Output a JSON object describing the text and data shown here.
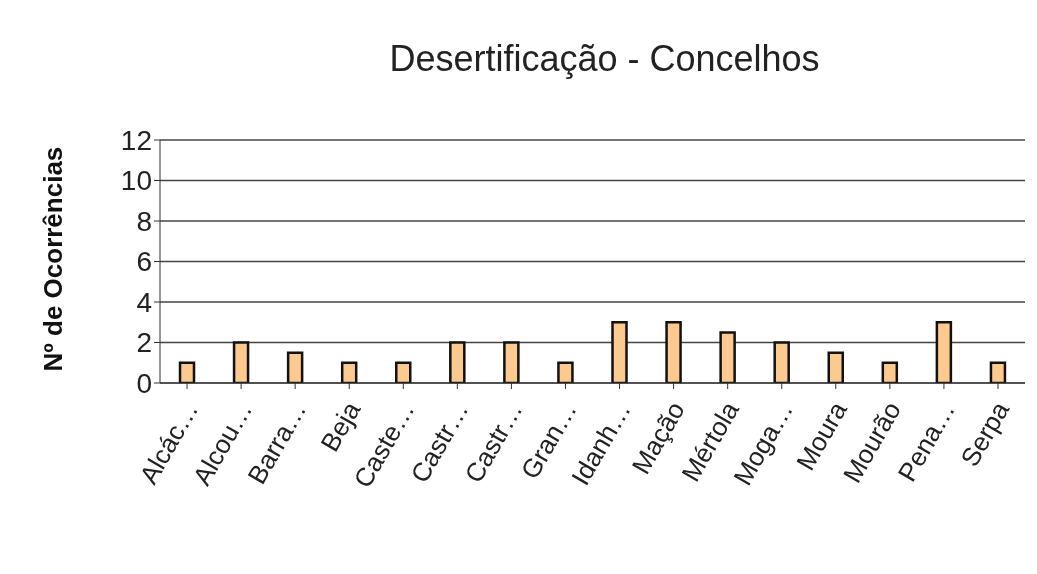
{
  "chart_data": {
    "type": "bar",
    "title": "Desertificação  - Concelhos",
    "ylabel": "Nº de Ocorrências",
    "categories": [
      "Alcác…",
      "Alcou…",
      "Barra…",
      "Beja",
      "Caste…",
      "Castr…",
      "Castr…",
      "Gran…",
      "Idanh…",
      "Mação",
      "Mértola",
      "Moga…",
      "Moura",
      "Mourão",
      "Pena…",
      "Serpa"
    ],
    "values": [
      1,
      2,
      1.5,
      1,
      1,
      2,
      2,
      1,
      3,
      3,
      2.5,
      2,
      1.5,
      1,
      3,
      1
    ],
    "color": "#fcc98f",
    "ylim": [
      0,
      12
    ],
    "yticks": [
      0,
      2,
      4,
      6,
      8,
      10,
      12
    ],
    "grid": "y"
  }
}
